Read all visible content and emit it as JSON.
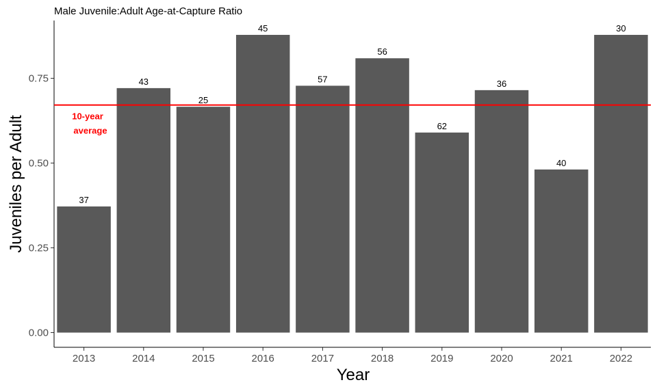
{
  "chart_data": {
    "type": "bar",
    "title": "Male Juvenile:Adult Age-at-Capture Ratio",
    "xlabel": "Year",
    "ylabel": "Juveniles per Adult",
    "categories": [
      "2013",
      "2014",
      "2015",
      "2016",
      "2017",
      "2018",
      "2019",
      "2020",
      "2021",
      "2022"
    ],
    "values": [
      0.372,
      0.721,
      0.666,
      0.878,
      0.728,
      0.809,
      0.59,
      0.715,
      0.481,
      0.878
    ],
    "bar_labels": [
      "37",
      "43",
      "25",
      "45",
      "57",
      "56",
      "62",
      "36",
      "40",
      "30"
    ],
    "ylim": [
      0,
      0.92
    ],
    "yticks": [
      0,
      0.25,
      0.5,
      0.75
    ],
    "ytick_labels": [
      "0.00",
      "0.25",
      "0.50",
      "0.75"
    ],
    "bar_color": "#595959",
    "reference_line": {
      "value": 0.671,
      "color": "#ff0000",
      "label_line1": "10-year",
      "label_line2": "average"
    },
    "grid": false,
    "legend": "none"
  }
}
